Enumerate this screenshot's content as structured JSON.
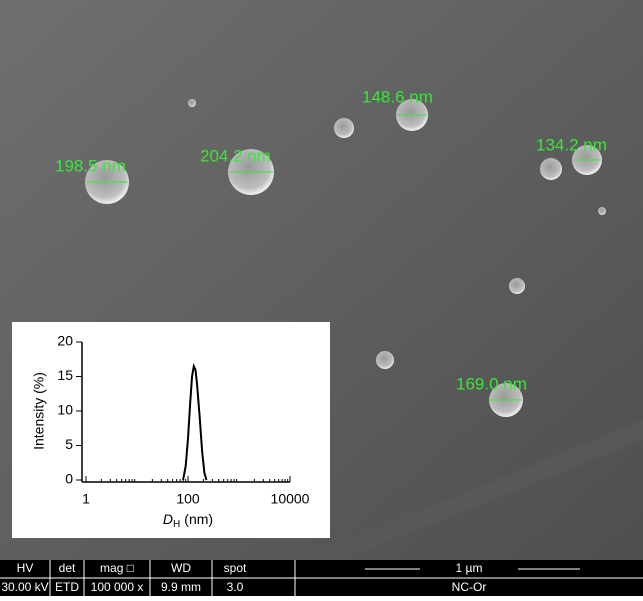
{
  "annotations": [
    "198.5 nm",
    "204.2 nm",
    "148.6 nm",
    "134.2 nm",
    "169.0 nm"
  ],
  "info_bar": {
    "headers": [
      "HV",
      "det",
      "mag □",
      "WD",
      "spot"
    ],
    "values": [
      "30.00 kV",
      "ETD",
      "100 000 x",
      "9.9 mm",
      "3.0"
    ],
    "scale_label": "1 µm",
    "sample": "NC-Or"
  },
  "chart_data": {
    "type": "line",
    "y_label": "Intensity (%)",
    "x_label": "D",
    "x_label_sub": "H",
    "x_label_unit": "(nm)",
    "log_x": true,
    "xlim": [
      1,
      10000
    ],
    "xticks": [
      1,
      100,
      10000
    ],
    "ylim": [
      0,
      20
    ],
    "yticks": [
      0,
      5,
      10,
      15,
      20
    ],
    "x": [
      80,
      90,
      100,
      110,
      120,
      130,
      140,
      150,
      170,
      190,
      210,
      230
    ],
    "series": [
      {
        "color": "#000000",
        "values": [
          0,
          2,
          6,
          11,
          15,
          16.5,
          16,
          14,
          9,
          4,
          1,
          0
        ]
      }
    ]
  }
}
